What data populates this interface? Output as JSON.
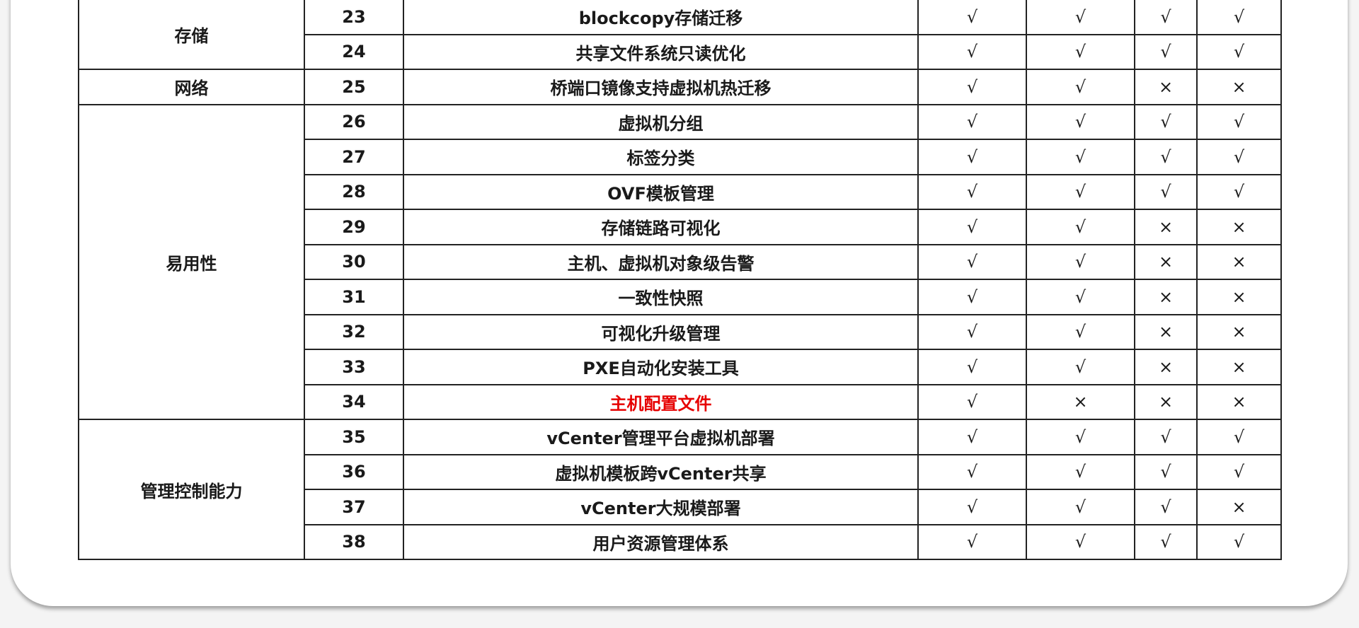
{
  "table": {
    "groups": [
      {
        "category": "存储",
        "rows": [
          {
            "no": "23",
            "feature": "blockcopy存储迁移",
            "marks": [
              "√",
              "√",
              "√",
              "√"
            ]
          },
          {
            "no": "24",
            "feature": "共享文件系统只读优化",
            "marks": [
              "√",
              "√",
              "√",
              "√"
            ]
          }
        ]
      },
      {
        "category": "网络",
        "rows": [
          {
            "no": "25",
            "feature": "桥端口镜像支持虚拟机热迁移",
            "marks": [
              "√",
              "√",
              "×",
              "×"
            ]
          }
        ]
      },
      {
        "category": "易用性",
        "rows": [
          {
            "no": "26",
            "feature": "虚拟机分组",
            "marks": [
              "√",
              "√",
              "√",
              "√"
            ]
          },
          {
            "no": "27",
            "feature": "标签分类",
            "marks": [
              "√",
              "√",
              "√",
              "√"
            ]
          },
          {
            "no": "28",
            "feature": "OVF模板管理",
            "marks": [
              "√",
              "√",
              "√",
              "√"
            ]
          },
          {
            "no": "29",
            "feature": "存储链路可视化",
            "marks": [
              "√",
              "√",
              "×",
              "×"
            ]
          },
          {
            "no": "30",
            "feature": "主机、虚拟机对象级告警",
            "marks": [
              "√",
              "√",
              "×",
              "×"
            ]
          },
          {
            "no": "31",
            "feature": "一致性快照",
            "marks": [
              "√",
              "√",
              "×",
              "×"
            ]
          },
          {
            "no": "32",
            "feature": "可视化升级管理",
            "marks": [
              "√",
              "√",
              "×",
              "×"
            ]
          },
          {
            "no": "33",
            "feature": "PXE自动化安装工具",
            "marks": [
              "√",
              "√",
              "×",
              "×"
            ]
          },
          {
            "no": "34",
            "feature": "主机配置文件",
            "highlight": true,
            "marks": [
              "√",
              "×",
              "×",
              "×"
            ]
          }
        ]
      },
      {
        "category": "管理控制能力",
        "rows": [
          {
            "no": "35",
            "feature": "vCenter管理平台虚拟机部署",
            "marks": [
              "√",
              "√",
              "√",
              "√"
            ]
          },
          {
            "no": "36",
            "feature": "虚拟机模板跨vCenter共享",
            "marks": [
              "√",
              "√",
              "√",
              "√"
            ]
          },
          {
            "no": "37",
            "feature": "vCenter大规模部署",
            "marks": [
              "√",
              "√",
              "√",
              "×"
            ]
          },
          {
            "no": "38",
            "feature": "用户资源管理体系",
            "marks": [
              "√",
              "√",
              "√",
              "√"
            ]
          }
        ]
      }
    ],
    "highlight_color": "#e60000"
  }
}
